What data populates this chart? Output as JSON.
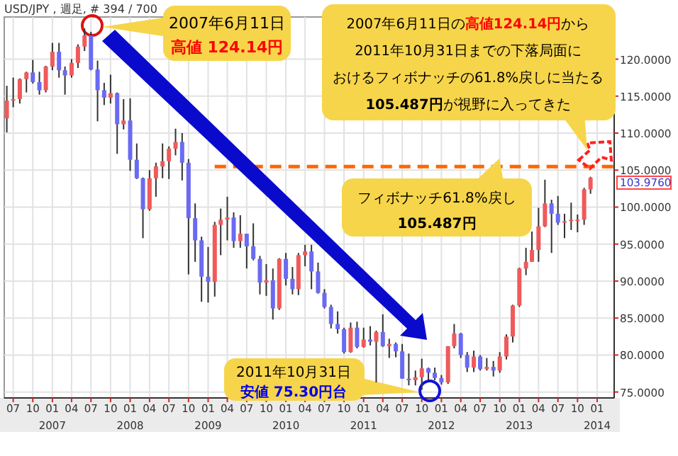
{
  "chart_data": {
    "type": "candlestick",
    "title": "USD/JPY , 週足, # 394 / 700",
    "x": [
      "2006-06",
      "2006-07",
      "2006-08",
      "2006-09",
      "2006-10",
      "2006-11",
      "2006-12",
      "2007-01",
      "2007-02",
      "2007-03",
      "2007-04",
      "2007-05",
      "2007-06",
      "2007-07",
      "2007-08",
      "2007-09",
      "2007-10",
      "2007-11",
      "2007-12",
      "2008-01",
      "2008-02",
      "2008-03",
      "2008-04",
      "2008-05",
      "2008-06",
      "2008-07",
      "2008-08",
      "2008-09",
      "2008-10",
      "2008-11",
      "2008-12",
      "2009-01",
      "2009-02",
      "2009-03",
      "2009-04",
      "2009-05",
      "2009-06",
      "2009-07",
      "2009-08",
      "2009-09",
      "2009-10",
      "2009-11",
      "2009-12",
      "2010-01",
      "2010-02",
      "2010-03",
      "2010-04",
      "2010-05",
      "2010-06",
      "2010-07",
      "2010-08",
      "2010-09",
      "2010-10",
      "2010-11",
      "2010-12",
      "2011-01",
      "2011-02",
      "2011-03",
      "2011-04",
      "2011-05",
      "2011-06",
      "2011-07",
      "2011-08",
      "2011-09",
      "2011-10",
      "2011-11",
      "2011-12",
      "2012-01",
      "2012-02",
      "2012-03",
      "2012-04",
      "2012-05",
      "2012-06",
      "2012-07",
      "2012-08",
      "2012-09",
      "2012-10",
      "2012-11",
      "2012-12",
      "2013-01",
      "2013-02",
      "2013-03",
      "2013-04",
      "2013-05",
      "2013-06",
      "2013-07",
      "2013-08",
      "2013-09",
      "2013-10",
      "2013-11",
      "2013-12"
    ],
    "ohlc": [
      [
        112.0,
        116.4,
        110.1,
        114.4
      ],
      [
        114.4,
        117.5,
        113.5,
        114.6
      ],
      [
        114.6,
        117.4,
        114.0,
        117.3
      ],
      [
        117.3,
        118.3,
        115.5,
        118.2
      ],
      [
        118.2,
        119.9,
        116.7,
        116.9
      ],
      [
        116.9,
        118.3,
        115.2,
        115.8
      ],
      [
        115.8,
        119.1,
        115.5,
        119.0
      ],
      [
        119.0,
        122.2,
        118.5,
        121.0
      ],
      [
        121.0,
        122.2,
        117.5,
        118.5
      ],
      [
        118.5,
        119.0,
        115.2,
        117.8
      ],
      [
        117.8,
        120.0,
        117.5,
        119.5
      ],
      [
        119.5,
        122.0,
        118.8,
        121.7
      ],
      [
        121.7,
        124.14,
        121.1,
        123.2
      ],
      [
        123.2,
        123.7,
        118.5,
        118.6
      ],
      [
        118.6,
        119.8,
        111.6,
        115.8
      ],
      [
        115.8,
        116.8,
        113.8,
        114.8
      ],
      [
        114.8,
        117.9,
        114.0,
        115.4
      ],
      [
        115.4,
        115.5,
        107.2,
        111.2
      ],
      [
        111.2,
        114.6,
        110.5,
        111.7
      ],
      [
        111.7,
        114.7,
        104.9,
        106.4
      ],
      [
        106.4,
        108.6,
        103.8,
        103.9
      ],
      [
        103.9,
        104.0,
        95.8,
        99.7
      ],
      [
        99.7,
        105.0,
        99.5,
        103.9
      ],
      [
        103.9,
        106.0,
        101.4,
        105.5
      ],
      [
        105.5,
        108.6,
        103.9,
        106.2
      ],
      [
        106.2,
        108.2,
        103.8,
        107.9
      ],
      [
        107.9,
        110.6,
        107.0,
        108.8
      ],
      [
        108.8,
        110.0,
        103.6,
        106.0
      ],
      [
        106.0,
        106.5,
        90.9,
        98.5
      ],
      [
        98.5,
        100.5,
        92.6,
        95.5
      ],
      [
        95.5,
        96.0,
        87.2,
        90.6
      ],
      [
        90.6,
        94.6,
        87.1,
        89.9
      ],
      [
        89.9,
        98.0,
        87.9,
        97.6
      ],
      [
        97.6,
        99.8,
        93.5,
        98.3
      ],
      [
        98.3,
        101.4,
        95.5,
        98.6
      ],
      [
        98.6,
        99.3,
        94.5,
        95.4
      ],
      [
        95.4,
        98.9,
        94.5,
        96.4
      ],
      [
        96.4,
        96.4,
        91.7,
        94.7
      ],
      [
        94.7,
        97.8,
        92.8,
        93.0
      ],
      [
        93.0,
        93.4,
        88.2,
        89.8
      ],
      [
        89.8,
        92.3,
        88.0,
        90.1
      ],
      [
        90.1,
        91.7,
        84.8,
        86.3
      ],
      [
        86.3,
        93.1,
        86.1,
        93.0
      ],
      [
        93.0,
        93.8,
        89.4,
        90.3
      ],
      [
        90.3,
        91.9,
        88.2,
        88.9
      ],
      [
        88.9,
        93.8,
        88.1,
        93.5
      ],
      [
        93.5,
        94.9,
        92.0,
        94.0
      ],
      [
        94.0,
        94.9,
        88.9,
        91.3
      ],
      [
        91.3,
        92.5,
        88.3,
        88.4
      ],
      [
        88.4,
        88.9,
        86.3,
        86.5
      ],
      [
        86.5,
        86.8,
        83.6,
        84.2
      ],
      [
        84.2,
        85.9,
        82.9,
        83.5
      ],
      [
        83.5,
        83.7,
        80.2,
        80.4
      ],
      [
        80.4,
        84.4,
        80.3,
        83.7
      ],
      [
        83.7,
        84.5,
        80.9,
        81.1
      ],
      [
        81.1,
        83.7,
        81.0,
        82.1
      ],
      [
        82.1,
        83.9,
        81.3,
        81.8
      ],
      [
        81.8,
        83.3,
        76.3,
        83.1
      ],
      [
        83.1,
        85.5,
        81.1,
        81.2
      ],
      [
        81.2,
        82.2,
        79.6,
        81.5
      ],
      [
        81.5,
        81.7,
        79.7,
        80.5
      ],
      [
        80.5,
        81.5,
        76.8,
        76.8
      ],
      [
        76.8,
        80.2,
        75.9,
        76.6
      ],
      [
        76.6,
        77.9,
        75.9,
        77.0
      ],
      [
        77.0,
        79.5,
        75.3,
        78.2
      ],
      [
        78.2,
        78.3,
        76.6,
        77.6
      ],
      [
        77.6,
        78.3,
        76.6,
        76.9
      ],
      [
        76.9,
        77.3,
        76.0,
        76.3
      ],
      [
        76.3,
        81.2,
        76.1,
        81.2
      ],
      [
        81.2,
        84.2,
        80.9,
        82.9
      ],
      [
        82.9,
        83.0,
        79.6,
        80.0
      ],
      [
        80.0,
        80.4,
        77.7,
        78.3
      ],
      [
        78.3,
        80.6,
        77.7,
        79.8
      ],
      [
        79.8,
        80.0,
        77.9,
        78.1
      ],
      [
        78.1,
        79.6,
        77.9,
        78.4
      ],
      [
        78.4,
        79.2,
        77.1,
        77.9
      ],
      [
        77.9,
        80.4,
        77.6,
        79.8
      ],
      [
        79.8,
        82.8,
        79.4,
        82.5
      ],
      [
        82.5,
        86.8,
        81.7,
        86.7
      ],
      [
        86.7,
        91.8,
        86.5,
        91.7
      ],
      [
        91.7,
        94.5,
        90.8,
        92.6
      ],
      [
        92.6,
        96.7,
        92.6,
        94.2
      ],
      [
        94.2,
        99.9,
        92.6,
        97.4
      ],
      [
        97.4,
        103.7,
        97.3,
        100.5
      ],
      [
        100.5,
        101.0,
        93.8,
        99.1
      ],
      [
        99.1,
        101.5,
        97.6,
        97.9
      ],
      [
        97.9,
        99.1,
        95.8,
        98.1
      ],
      [
        98.1,
        100.6,
        96.9,
        98.3
      ],
      [
        98.3,
        99.0,
        96.6,
        98.3
      ],
      [
        98.3,
        102.6,
        97.6,
        102.4
      ],
      [
        102.4,
        104.1,
        101.8,
        103.976
      ]
    ],
    "xlim": [
      "2006-05-20",
      "2014-03-22"
    ],
    "xticks": [
      {
        "value": "2006-07",
        "label": "07"
      },
      {
        "value": "2006-10",
        "label": "10"
      },
      {
        "value": "2007-01",
        "label": "01\n2007"
      },
      {
        "value": "2007-04",
        "label": "04"
      },
      {
        "value": "2007-07",
        "label": "07"
      },
      {
        "value": "2007-10",
        "label": "10"
      },
      {
        "value": "2008-01",
        "label": "01\n2008"
      },
      {
        "value": "2008-04",
        "label": "04"
      },
      {
        "value": "2008-07",
        "label": "07"
      },
      {
        "value": "2008-10",
        "label": "10"
      },
      {
        "value": "2009-01",
        "label": "01\n2009"
      },
      {
        "value": "2009-04",
        "label": "04"
      },
      {
        "value": "2009-07",
        "label": "07"
      },
      {
        "value": "2009-10",
        "label": "10"
      },
      {
        "value": "2010-01",
        "label": "01\n2010"
      },
      {
        "value": "2010-04",
        "label": "04"
      },
      {
        "value": "2010-07",
        "label": "07"
      },
      {
        "value": "2010-10",
        "label": "10"
      },
      {
        "value": "2011-01",
        "label": "01\n2011"
      },
      {
        "value": "2011-04",
        "label": "04"
      },
      {
        "value": "2011-07",
        "label": "07"
      },
      {
        "value": "2011-10",
        "label": "10"
      },
      {
        "value": "2012-01",
        "label": "01\n2012"
      },
      {
        "value": "2012-04",
        "label": "04"
      },
      {
        "value": "2012-07",
        "label": "07"
      },
      {
        "value": "2012-10",
        "label": "10"
      },
      {
        "value": "2013-01",
        "label": "01\n2013"
      },
      {
        "value": "2013-04",
        "label": "04"
      },
      {
        "value": "2013-07",
        "label": "07"
      },
      {
        "value": "2013-10",
        "label": "10"
      },
      {
        "value": "2014-01",
        "label": "01\n2014"
      }
    ],
    "ylim": [
      74.2,
      125.7
    ],
    "yticks": [
      {
        "value": 75,
        "label": "75.0000"
      },
      {
        "value": 80,
        "label": "80.0000"
      },
      {
        "value": 85,
        "label": "85.0000"
      },
      {
        "value": 90,
        "label": "90.0000"
      },
      {
        "value": 95,
        "label": "95.0000"
      },
      {
        "value": 100,
        "label": "100.0000"
      },
      {
        "value": 105,
        "label": "105.0000"
      },
      {
        "value": 110,
        "label": "110.0000"
      },
      {
        "value": 115,
        "label": "115.0000"
      },
      {
        "value": 120,
        "label": "120.0000"
      }
    ],
    "grid": true,
    "ref_lines": [
      {
        "axis": "y",
        "value": 105.487,
        "color": "#ff6600",
        "line_style": "dashed"
      }
    ],
    "annotations": [
      "2007年6月11日",
      "高値 124.14円",
      "2007年6月11日の",
      "高値124.14円",
      "から",
      "2011年10月31日までの下落局面に",
      "おけるフィボナッチの61.8%戻しに当たる",
      "105.487円",
      "が視野に入ってきた",
      "フィボナッチ61.8%戻し",
      "105.487円",
      "2011年10月31日",
      "安値 75.30円台",
      {
        "text": "103.9760",
        "x": "2013-12",
        "y": 103.976
      }
    ]
  }
}
